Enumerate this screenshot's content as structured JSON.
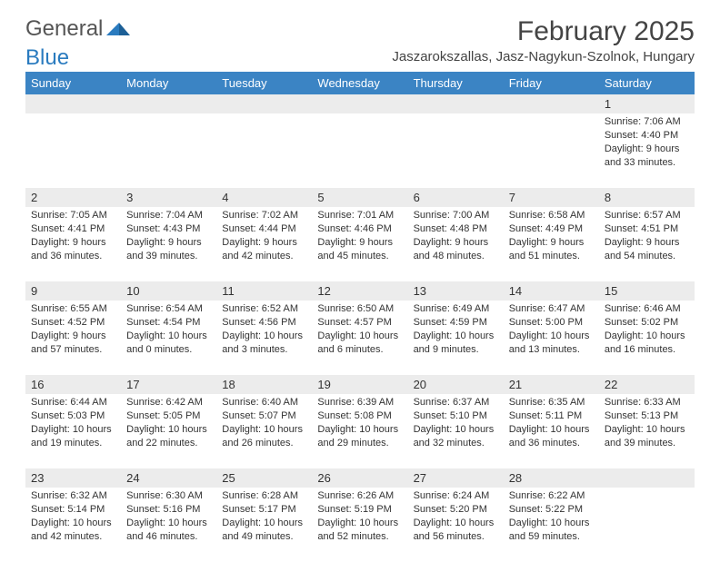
{
  "logo": {
    "general": "General",
    "blue": "Blue"
  },
  "title": "February 2025",
  "location": "Jaszarokszallas, Jasz-Nagykun-Szolnok, Hungary",
  "colors": {
    "header_bg": "#3b84c4",
    "header_text": "#ffffff",
    "row_border": "#3b6fa0",
    "daynum_bg": "#ececec",
    "body_text": "#333333",
    "logo_blue": "#2a7bbf",
    "logo_gray": "#555555"
  },
  "day_headers": [
    "Sunday",
    "Monday",
    "Tuesday",
    "Wednesday",
    "Thursday",
    "Friday",
    "Saturday"
  ],
  "weeks": [
    [
      {
        "num": "",
        "sunrise": "",
        "sunset": "",
        "daylight1": "",
        "daylight2": ""
      },
      {
        "num": "",
        "sunrise": "",
        "sunset": "",
        "daylight1": "",
        "daylight2": ""
      },
      {
        "num": "",
        "sunrise": "",
        "sunset": "",
        "daylight1": "",
        "daylight2": ""
      },
      {
        "num": "",
        "sunrise": "",
        "sunset": "",
        "daylight1": "",
        "daylight2": ""
      },
      {
        "num": "",
        "sunrise": "",
        "sunset": "",
        "daylight1": "",
        "daylight2": ""
      },
      {
        "num": "",
        "sunrise": "",
        "sunset": "",
        "daylight1": "",
        "daylight2": ""
      },
      {
        "num": "1",
        "sunrise": "Sunrise: 7:06 AM",
        "sunset": "Sunset: 4:40 PM",
        "daylight1": "Daylight: 9 hours",
        "daylight2": "and 33 minutes."
      }
    ],
    [
      {
        "num": "2",
        "sunrise": "Sunrise: 7:05 AM",
        "sunset": "Sunset: 4:41 PM",
        "daylight1": "Daylight: 9 hours",
        "daylight2": "and 36 minutes."
      },
      {
        "num": "3",
        "sunrise": "Sunrise: 7:04 AM",
        "sunset": "Sunset: 4:43 PM",
        "daylight1": "Daylight: 9 hours",
        "daylight2": "and 39 minutes."
      },
      {
        "num": "4",
        "sunrise": "Sunrise: 7:02 AM",
        "sunset": "Sunset: 4:44 PM",
        "daylight1": "Daylight: 9 hours",
        "daylight2": "and 42 minutes."
      },
      {
        "num": "5",
        "sunrise": "Sunrise: 7:01 AM",
        "sunset": "Sunset: 4:46 PM",
        "daylight1": "Daylight: 9 hours",
        "daylight2": "and 45 minutes."
      },
      {
        "num": "6",
        "sunrise": "Sunrise: 7:00 AM",
        "sunset": "Sunset: 4:48 PM",
        "daylight1": "Daylight: 9 hours",
        "daylight2": "and 48 minutes."
      },
      {
        "num": "7",
        "sunrise": "Sunrise: 6:58 AM",
        "sunset": "Sunset: 4:49 PM",
        "daylight1": "Daylight: 9 hours",
        "daylight2": "and 51 minutes."
      },
      {
        "num": "8",
        "sunrise": "Sunrise: 6:57 AM",
        "sunset": "Sunset: 4:51 PM",
        "daylight1": "Daylight: 9 hours",
        "daylight2": "and 54 minutes."
      }
    ],
    [
      {
        "num": "9",
        "sunrise": "Sunrise: 6:55 AM",
        "sunset": "Sunset: 4:52 PM",
        "daylight1": "Daylight: 9 hours",
        "daylight2": "and 57 minutes."
      },
      {
        "num": "10",
        "sunrise": "Sunrise: 6:54 AM",
        "sunset": "Sunset: 4:54 PM",
        "daylight1": "Daylight: 10 hours",
        "daylight2": "and 0 minutes."
      },
      {
        "num": "11",
        "sunrise": "Sunrise: 6:52 AM",
        "sunset": "Sunset: 4:56 PM",
        "daylight1": "Daylight: 10 hours",
        "daylight2": "and 3 minutes."
      },
      {
        "num": "12",
        "sunrise": "Sunrise: 6:50 AM",
        "sunset": "Sunset: 4:57 PM",
        "daylight1": "Daylight: 10 hours",
        "daylight2": "and 6 minutes."
      },
      {
        "num": "13",
        "sunrise": "Sunrise: 6:49 AM",
        "sunset": "Sunset: 4:59 PM",
        "daylight1": "Daylight: 10 hours",
        "daylight2": "and 9 minutes."
      },
      {
        "num": "14",
        "sunrise": "Sunrise: 6:47 AM",
        "sunset": "Sunset: 5:00 PM",
        "daylight1": "Daylight: 10 hours",
        "daylight2": "and 13 minutes."
      },
      {
        "num": "15",
        "sunrise": "Sunrise: 6:46 AM",
        "sunset": "Sunset: 5:02 PM",
        "daylight1": "Daylight: 10 hours",
        "daylight2": "and 16 minutes."
      }
    ],
    [
      {
        "num": "16",
        "sunrise": "Sunrise: 6:44 AM",
        "sunset": "Sunset: 5:03 PM",
        "daylight1": "Daylight: 10 hours",
        "daylight2": "and 19 minutes."
      },
      {
        "num": "17",
        "sunrise": "Sunrise: 6:42 AM",
        "sunset": "Sunset: 5:05 PM",
        "daylight1": "Daylight: 10 hours",
        "daylight2": "and 22 minutes."
      },
      {
        "num": "18",
        "sunrise": "Sunrise: 6:40 AM",
        "sunset": "Sunset: 5:07 PM",
        "daylight1": "Daylight: 10 hours",
        "daylight2": "and 26 minutes."
      },
      {
        "num": "19",
        "sunrise": "Sunrise: 6:39 AM",
        "sunset": "Sunset: 5:08 PM",
        "daylight1": "Daylight: 10 hours",
        "daylight2": "and 29 minutes."
      },
      {
        "num": "20",
        "sunrise": "Sunrise: 6:37 AM",
        "sunset": "Sunset: 5:10 PM",
        "daylight1": "Daylight: 10 hours",
        "daylight2": "and 32 minutes."
      },
      {
        "num": "21",
        "sunrise": "Sunrise: 6:35 AM",
        "sunset": "Sunset: 5:11 PM",
        "daylight1": "Daylight: 10 hours",
        "daylight2": "and 36 minutes."
      },
      {
        "num": "22",
        "sunrise": "Sunrise: 6:33 AM",
        "sunset": "Sunset: 5:13 PM",
        "daylight1": "Daylight: 10 hours",
        "daylight2": "and 39 minutes."
      }
    ],
    [
      {
        "num": "23",
        "sunrise": "Sunrise: 6:32 AM",
        "sunset": "Sunset: 5:14 PM",
        "daylight1": "Daylight: 10 hours",
        "daylight2": "and 42 minutes."
      },
      {
        "num": "24",
        "sunrise": "Sunrise: 6:30 AM",
        "sunset": "Sunset: 5:16 PM",
        "daylight1": "Daylight: 10 hours",
        "daylight2": "and 46 minutes."
      },
      {
        "num": "25",
        "sunrise": "Sunrise: 6:28 AM",
        "sunset": "Sunset: 5:17 PM",
        "daylight1": "Daylight: 10 hours",
        "daylight2": "and 49 minutes."
      },
      {
        "num": "26",
        "sunrise": "Sunrise: 6:26 AM",
        "sunset": "Sunset: 5:19 PM",
        "daylight1": "Daylight: 10 hours",
        "daylight2": "and 52 minutes."
      },
      {
        "num": "27",
        "sunrise": "Sunrise: 6:24 AM",
        "sunset": "Sunset: 5:20 PM",
        "daylight1": "Daylight: 10 hours",
        "daylight2": "and 56 minutes."
      },
      {
        "num": "28",
        "sunrise": "Sunrise: 6:22 AM",
        "sunset": "Sunset: 5:22 PM",
        "daylight1": "Daylight: 10 hours",
        "daylight2": "and 59 minutes."
      },
      {
        "num": "",
        "sunrise": "",
        "sunset": "",
        "daylight1": "",
        "daylight2": ""
      }
    ]
  ]
}
